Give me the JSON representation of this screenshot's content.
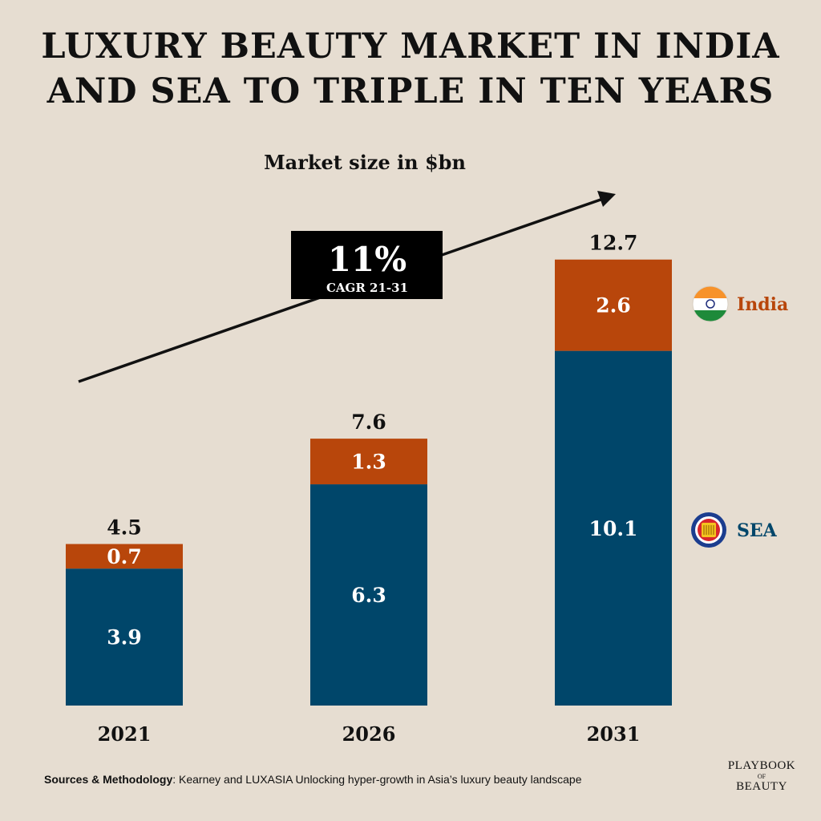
{
  "title": {
    "line1": "LUXURY BEAUTY MARKET IN INDIA",
    "line2": "AND SEA TO TRIPLE IN TEN YEARS"
  },
  "chart_data": {
    "type": "bar",
    "stacked": true,
    "subtitle": "Market size in $bn",
    "categories": [
      "2021",
      "2026",
      "2031"
    ],
    "totals": [
      "4.5",
      "7.6",
      "12.7"
    ],
    "series": [
      {
        "name": "SEA",
        "values": [
          3.9,
          6.3,
          10.1
        ],
        "labels": [
          "3.9",
          "6.3",
          "10.1"
        ],
        "color": "#00466a"
      },
      {
        "name": "India",
        "values": [
          0.7,
          1.3,
          2.6
        ],
        "labels": [
          "0.7",
          "1.3",
          "2.6"
        ],
        "color": "#b8460b"
      }
    ],
    "legend_placement": "right",
    "grid": false,
    "annotation": {
      "value": "11%",
      "label": "CAGR 21-31"
    }
  },
  "colors": {
    "background": "#e6ddd1",
    "sea": "#00466a",
    "india": "#b8460b",
    "text": "#111111"
  },
  "icons": {
    "india": "india-flag-icon",
    "sea": "asean-emblem-icon"
  },
  "footer": {
    "sources_label": "Sources & Methodology",
    "sources_text": ": Kearney and LUXASIA Unlocking hyper-growth in Asia’s luxury beauty landscape",
    "logo_line1": "PLAYBOOK",
    "logo_line2": "OF",
    "logo_line3": "BEAUTY"
  }
}
